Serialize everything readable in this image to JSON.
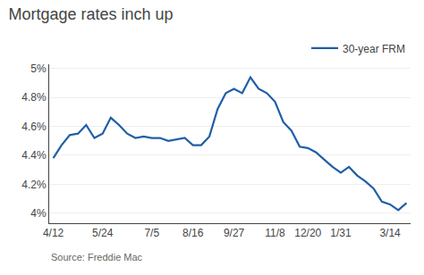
{
  "chart_data": {
    "type": "line",
    "title": "Mortgage rates inch up",
    "annotations": [
      "Source: Freddie Mac"
    ],
    "categories": [
      "4/12",
      null,
      null,
      null,
      null,
      null,
      "5/24",
      null,
      null,
      null,
      null,
      null,
      "7/5",
      null,
      null,
      null,
      null,
      "8/16",
      null,
      null,
      null,
      null,
      "9/27",
      null,
      null,
      null,
      null,
      "11/8",
      null,
      null,
      null,
      "12/20",
      null,
      null,
      null,
      "1/31",
      null,
      null,
      null,
      null,
      null,
      "3/14",
      null,
      null
    ],
    "series": [
      {
        "name": "30-year FRM",
        "color": "#1f5fa6",
        "values": [
          4.38,
          4.47,
          4.54,
          4.55,
          4.61,
          4.52,
          4.55,
          4.66,
          4.61,
          4.55,
          4.52,
          4.53,
          4.52,
          4.52,
          4.5,
          4.51,
          4.52,
          4.47,
          4.47,
          4.53,
          4.72,
          4.83,
          4.86,
          4.83,
          4.94,
          4.86,
          4.83,
          4.77,
          4.63,
          4.57,
          4.46,
          4.45,
          4.42,
          4.37,
          4.32,
          4.28,
          4.32,
          4.26,
          4.22,
          4.17,
          4.08,
          4.06,
          4.02,
          4.07
        ]
      }
    ],
    "ylim": [
      3.93,
      5.03
    ],
    "yticks": [
      {
        "value": 4.0,
        "label": "4%"
      },
      {
        "value": 4.2,
        "label": "4.2%"
      },
      {
        "value": 4.4,
        "label": "4.4%"
      },
      {
        "value": 4.6,
        "label": "4.6%"
      },
      {
        "value": 4.8,
        "label": "4.8%"
      },
      {
        "value": 5.0,
        "label": "5%"
      }
    ],
    "grid": "y",
    "legend": "upper right"
  }
}
